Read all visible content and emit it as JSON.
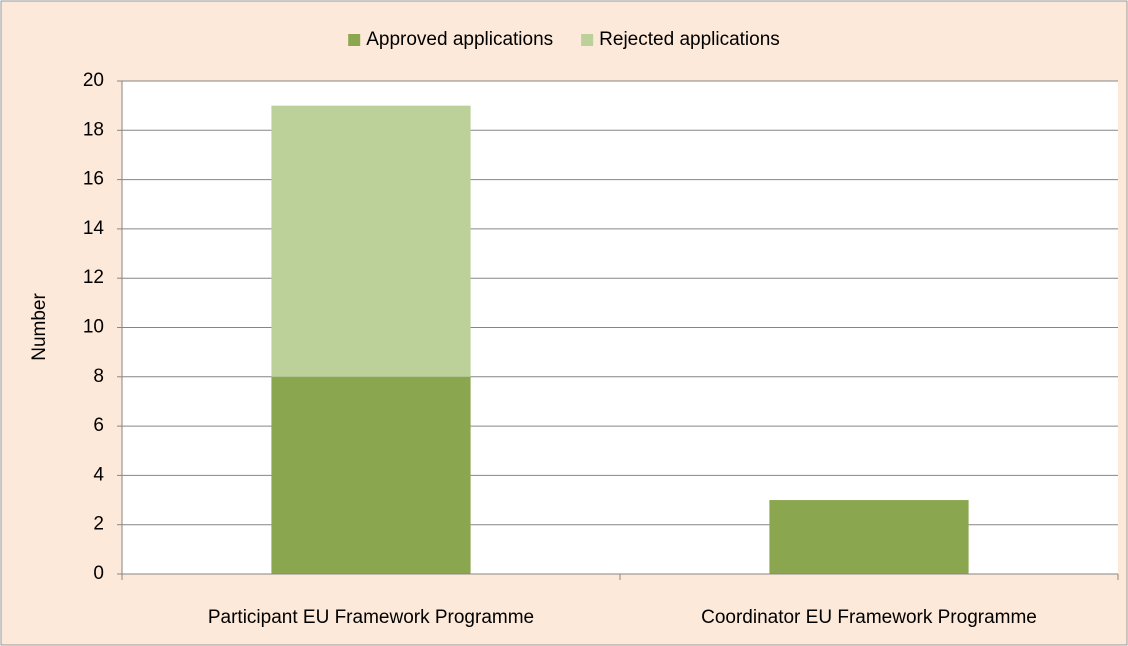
{
  "chart_data": {
    "type": "bar",
    "stacked": true,
    "categories": [
      "Participant EU Framework Programme",
      "Coordinator EU Framework Programme"
    ],
    "series": [
      {
        "name": "Approved applications",
        "color": "#8aa64f",
        "values": [
          8,
          3
        ]
      },
      {
        "name": "Rejected applications",
        "color": "#bcd19a",
        "values": [
          11,
          0
        ]
      }
    ],
    "y_label": "Number",
    "ylim": [
      0,
      20
    ],
    "yticks": [
      0,
      2,
      4,
      6,
      8,
      10,
      12,
      14,
      16,
      18,
      20
    ],
    "grid": true,
    "legend": "top"
  }
}
